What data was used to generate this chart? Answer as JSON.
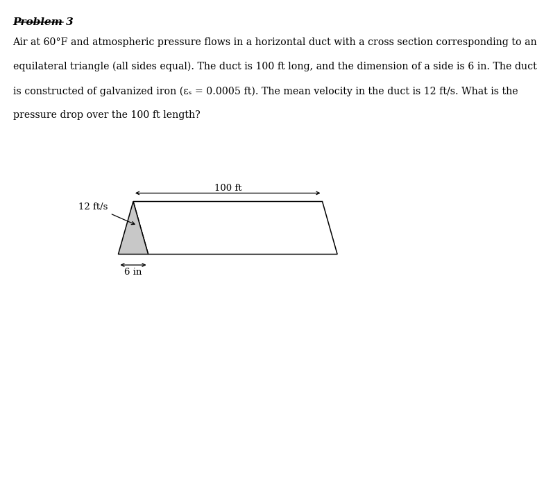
{
  "title": "Problem 3",
  "paragraph_lines": [
    "Air at 60°F and atmospheric pressure flows in a horizontal duct with a cross section corresponding to an",
    "equilateral triangle (all sides equal). The duct is 100 ft long, and the dimension of a side is 6 in. The duct",
    "is constructed of galvanized iron (εₛ = 0.0005 ft). The mean velocity in the duct is 12 ft/s. What is the",
    "pressure drop over the 100 ft length?"
  ],
  "bg_color": "#ffffff",
  "text_color": "#000000",
  "diagram": {
    "duct_color": "#ffffff",
    "duct_edge_color": "#000000",
    "triangle_color": "#c8c8c8",
    "triangle_edge_color": "#000000",
    "label_100ft": "100 ft",
    "label_12fts": "12 ft/s",
    "label_6in": "6 in"
  }
}
